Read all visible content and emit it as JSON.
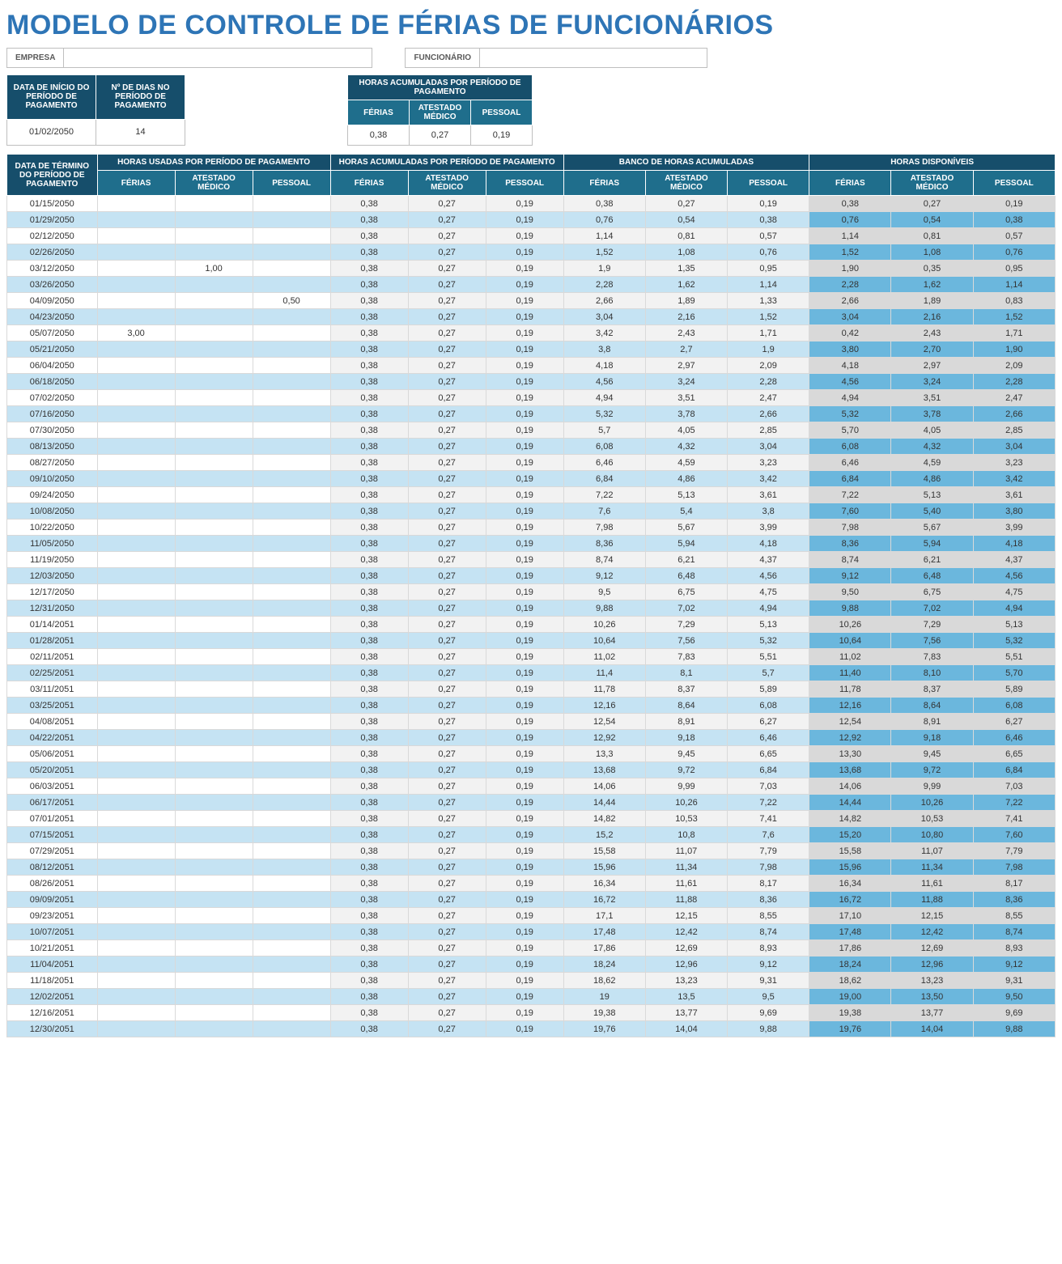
{
  "title": "MODELO DE CONTROLE DE FÉRIAS DE FUNCIONÁRIOS",
  "header": {
    "empresa_label": "EMPRESA",
    "empresa_value": "",
    "funcionario_label": "FUNCIONÁRIO",
    "funcionario_value": ""
  },
  "meta": {
    "start_label": "DATA DE INÍCIO DO PERÍODO DE PAGAMENTO",
    "days_label": "Nº DE DIAS NO PERÍODO DE PAGAMENTO",
    "start_value": "01/02/2050",
    "days_value": "14",
    "accrued_group": "HORAS ACUMULADAS POR PERÍODO DE PAGAMENTO",
    "ferias_label": "FÉRIAS",
    "atestado_label": "ATESTADO MÉDICO",
    "pessoal_label": "PESSOAL",
    "acc_ferias": "0,38",
    "acc_atestado": "0,27",
    "acc_pessoal": "0,19"
  },
  "columns": {
    "date_label": "DATA DE TÉRMINO DO PERÍODO DE PAGAMENTO",
    "used_group": "HORAS USADAS POR PERÍODO DE PAGAMENTO",
    "accr_group": "HORAS ACUMULADAS POR PERÍODO DE PAGAMENTO",
    "bank_group": "BANCO DE HORAS ACUMULADAS",
    "avail_group": "HORAS DISPONÍVEIS",
    "ferias": "FÉRIAS",
    "atestado": "ATESTADO MÉDICO",
    "pessoal": "PESSOAL"
  },
  "rows": [
    {
      "date": "01/15/2050",
      "uf": "",
      "ua": "",
      "up": "",
      "af": "0,38",
      "aa": "0,27",
      "ap": "0,19",
      "bf": "0,38",
      "ba": "0,27",
      "bp": "0,19",
      "vf": "0,38",
      "va": "0,27",
      "vp": "0,19"
    },
    {
      "date": "01/29/2050",
      "uf": "",
      "ua": "",
      "up": "",
      "af": "0,38",
      "aa": "0,27",
      "ap": "0,19",
      "bf": "0,76",
      "ba": "0,54",
      "bp": "0,38",
      "vf": "0,76",
      "va": "0,54",
      "vp": "0,38"
    },
    {
      "date": "02/12/2050",
      "uf": "",
      "ua": "",
      "up": "",
      "af": "0,38",
      "aa": "0,27",
      "ap": "0,19",
      "bf": "1,14",
      "ba": "0,81",
      "bp": "0,57",
      "vf": "1,14",
      "va": "0,81",
      "vp": "0,57"
    },
    {
      "date": "02/26/2050",
      "uf": "",
      "ua": "",
      "up": "",
      "af": "0,38",
      "aa": "0,27",
      "ap": "0,19",
      "bf": "1,52",
      "ba": "1,08",
      "bp": "0,76",
      "vf": "1,52",
      "va": "1,08",
      "vp": "0,76"
    },
    {
      "date": "03/12/2050",
      "uf": "",
      "ua": "1,00",
      "up": "",
      "af": "0,38",
      "aa": "0,27",
      "ap": "0,19",
      "bf": "1,9",
      "ba": "1,35",
      "bp": "0,95",
      "vf": "1,90",
      "va": "0,35",
      "vp": "0,95"
    },
    {
      "date": "03/26/2050",
      "uf": "",
      "ua": "",
      "up": "",
      "af": "0,38",
      "aa": "0,27",
      "ap": "0,19",
      "bf": "2,28",
      "ba": "1,62",
      "bp": "1,14",
      "vf": "2,28",
      "va": "1,62",
      "vp": "1,14"
    },
    {
      "date": "04/09/2050",
      "uf": "",
      "ua": "",
      "up": "0,50",
      "af": "0,38",
      "aa": "0,27",
      "ap": "0,19",
      "bf": "2,66",
      "ba": "1,89",
      "bp": "1,33",
      "vf": "2,66",
      "va": "1,89",
      "vp": "0,83"
    },
    {
      "date": "04/23/2050",
      "uf": "",
      "ua": "",
      "up": "",
      "af": "0,38",
      "aa": "0,27",
      "ap": "0,19",
      "bf": "3,04",
      "ba": "2,16",
      "bp": "1,52",
      "vf": "3,04",
      "va": "2,16",
      "vp": "1,52"
    },
    {
      "date": "05/07/2050",
      "uf": "3,00",
      "ua": "",
      "up": "",
      "af": "0,38",
      "aa": "0,27",
      "ap": "0,19",
      "bf": "3,42",
      "ba": "2,43",
      "bp": "1,71",
      "vf": "0,42",
      "va": "2,43",
      "vp": "1,71"
    },
    {
      "date": "05/21/2050",
      "uf": "",
      "ua": "",
      "up": "",
      "af": "0,38",
      "aa": "0,27",
      "ap": "0,19",
      "bf": "3,8",
      "ba": "2,7",
      "bp": "1,9",
      "vf": "3,80",
      "va": "2,70",
      "vp": "1,90"
    },
    {
      "date": "06/04/2050",
      "uf": "",
      "ua": "",
      "up": "",
      "af": "0,38",
      "aa": "0,27",
      "ap": "0,19",
      "bf": "4,18",
      "ba": "2,97",
      "bp": "2,09",
      "vf": "4,18",
      "va": "2,97",
      "vp": "2,09"
    },
    {
      "date": "06/18/2050",
      "uf": "",
      "ua": "",
      "up": "",
      "af": "0,38",
      "aa": "0,27",
      "ap": "0,19",
      "bf": "4,56",
      "ba": "3,24",
      "bp": "2,28",
      "vf": "4,56",
      "va": "3,24",
      "vp": "2,28"
    },
    {
      "date": "07/02/2050",
      "uf": "",
      "ua": "",
      "up": "",
      "af": "0,38",
      "aa": "0,27",
      "ap": "0,19",
      "bf": "4,94",
      "ba": "3,51",
      "bp": "2,47",
      "vf": "4,94",
      "va": "3,51",
      "vp": "2,47"
    },
    {
      "date": "07/16/2050",
      "uf": "",
      "ua": "",
      "up": "",
      "af": "0,38",
      "aa": "0,27",
      "ap": "0,19",
      "bf": "5,32",
      "ba": "3,78",
      "bp": "2,66",
      "vf": "5,32",
      "va": "3,78",
      "vp": "2,66"
    },
    {
      "date": "07/30/2050",
      "uf": "",
      "ua": "",
      "up": "",
      "af": "0,38",
      "aa": "0,27",
      "ap": "0,19",
      "bf": "5,7",
      "ba": "4,05",
      "bp": "2,85",
      "vf": "5,70",
      "va": "4,05",
      "vp": "2,85"
    },
    {
      "date": "08/13/2050",
      "uf": "",
      "ua": "",
      "up": "",
      "af": "0,38",
      "aa": "0,27",
      "ap": "0,19",
      "bf": "6,08",
      "ba": "4,32",
      "bp": "3,04",
      "vf": "6,08",
      "va": "4,32",
      "vp": "3,04"
    },
    {
      "date": "08/27/2050",
      "uf": "",
      "ua": "",
      "up": "",
      "af": "0,38",
      "aa": "0,27",
      "ap": "0,19",
      "bf": "6,46",
      "ba": "4,59",
      "bp": "3,23",
      "vf": "6,46",
      "va": "4,59",
      "vp": "3,23"
    },
    {
      "date": "09/10/2050",
      "uf": "",
      "ua": "",
      "up": "",
      "af": "0,38",
      "aa": "0,27",
      "ap": "0,19",
      "bf": "6,84",
      "ba": "4,86",
      "bp": "3,42",
      "vf": "6,84",
      "va": "4,86",
      "vp": "3,42"
    },
    {
      "date": "09/24/2050",
      "uf": "",
      "ua": "",
      "up": "",
      "af": "0,38",
      "aa": "0,27",
      "ap": "0,19",
      "bf": "7,22",
      "ba": "5,13",
      "bp": "3,61",
      "vf": "7,22",
      "va": "5,13",
      "vp": "3,61"
    },
    {
      "date": "10/08/2050",
      "uf": "",
      "ua": "",
      "up": "",
      "af": "0,38",
      "aa": "0,27",
      "ap": "0,19",
      "bf": "7,6",
      "ba": "5,4",
      "bp": "3,8",
      "vf": "7,60",
      "va": "5,40",
      "vp": "3,80"
    },
    {
      "date": "10/22/2050",
      "uf": "",
      "ua": "",
      "up": "",
      "af": "0,38",
      "aa": "0,27",
      "ap": "0,19",
      "bf": "7,98",
      "ba": "5,67",
      "bp": "3,99",
      "vf": "7,98",
      "va": "5,67",
      "vp": "3,99"
    },
    {
      "date": "11/05/2050",
      "uf": "",
      "ua": "",
      "up": "",
      "af": "0,38",
      "aa": "0,27",
      "ap": "0,19",
      "bf": "8,36",
      "ba": "5,94",
      "bp": "4,18",
      "vf": "8,36",
      "va": "5,94",
      "vp": "4,18"
    },
    {
      "date": "11/19/2050",
      "uf": "",
      "ua": "",
      "up": "",
      "af": "0,38",
      "aa": "0,27",
      "ap": "0,19",
      "bf": "8,74",
      "ba": "6,21",
      "bp": "4,37",
      "vf": "8,74",
      "va": "6,21",
      "vp": "4,37"
    },
    {
      "date": "12/03/2050",
      "uf": "",
      "ua": "",
      "up": "",
      "af": "0,38",
      "aa": "0,27",
      "ap": "0,19",
      "bf": "9,12",
      "ba": "6,48",
      "bp": "4,56",
      "vf": "9,12",
      "va": "6,48",
      "vp": "4,56"
    },
    {
      "date": "12/17/2050",
      "uf": "",
      "ua": "",
      "up": "",
      "af": "0,38",
      "aa": "0,27",
      "ap": "0,19",
      "bf": "9,5",
      "ba": "6,75",
      "bp": "4,75",
      "vf": "9,50",
      "va": "6,75",
      "vp": "4,75"
    },
    {
      "date": "12/31/2050",
      "uf": "",
      "ua": "",
      "up": "",
      "af": "0,38",
      "aa": "0,27",
      "ap": "0,19",
      "bf": "9,88",
      "ba": "7,02",
      "bp": "4,94",
      "vf": "9,88",
      "va": "7,02",
      "vp": "4,94"
    },
    {
      "date": "01/14/2051",
      "uf": "",
      "ua": "",
      "up": "",
      "af": "0,38",
      "aa": "0,27",
      "ap": "0,19",
      "bf": "10,26",
      "ba": "7,29",
      "bp": "5,13",
      "vf": "10,26",
      "va": "7,29",
      "vp": "5,13"
    },
    {
      "date": "01/28/2051",
      "uf": "",
      "ua": "",
      "up": "",
      "af": "0,38",
      "aa": "0,27",
      "ap": "0,19",
      "bf": "10,64",
      "ba": "7,56",
      "bp": "5,32",
      "vf": "10,64",
      "va": "7,56",
      "vp": "5,32"
    },
    {
      "date": "02/11/2051",
      "uf": "",
      "ua": "",
      "up": "",
      "af": "0,38",
      "aa": "0,27",
      "ap": "0,19",
      "bf": "11,02",
      "ba": "7,83",
      "bp": "5,51",
      "vf": "11,02",
      "va": "7,83",
      "vp": "5,51"
    },
    {
      "date": "02/25/2051",
      "uf": "",
      "ua": "",
      "up": "",
      "af": "0,38",
      "aa": "0,27",
      "ap": "0,19",
      "bf": "11,4",
      "ba": "8,1",
      "bp": "5,7",
      "vf": "11,40",
      "va": "8,10",
      "vp": "5,70"
    },
    {
      "date": "03/11/2051",
      "uf": "",
      "ua": "",
      "up": "",
      "af": "0,38",
      "aa": "0,27",
      "ap": "0,19",
      "bf": "11,78",
      "ba": "8,37",
      "bp": "5,89",
      "vf": "11,78",
      "va": "8,37",
      "vp": "5,89"
    },
    {
      "date": "03/25/2051",
      "uf": "",
      "ua": "",
      "up": "",
      "af": "0,38",
      "aa": "0,27",
      "ap": "0,19",
      "bf": "12,16",
      "ba": "8,64",
      "bp": "6,08",
      "vf": "12,16",
      "va": "8,64",
      "vp": "6,08"
    },
    {
      "date": "04/08/2051",
      "uf": "",
      "ua": "",
      "up": "",
      "af": "0,38",
      "aa": "0,27",
      "ap": "0,19",
      "bf": "12,54",
      "ba": "8,91",
      "bp": "6,27",
      "vf": "12,54",
      "va": "8,91",
      "vp": "6,27"
    },
    {
      "date": "04/22/2051",
      "uf": "",
      "ua": "",
      "up": "",
      "af": "0,38",
      "aa": "0,27",
      "ap": "0,19",
      "bf": "12,92",
      "ba": "9,18",
      "bp": "6,46",
      "vf": "12,92",
      "va": "9,18",
      "vp": "6,46"
    },
    {
      "date": "05/06/2051",
      "uf": "",
      "ua": "",
      "up": "",
      "af": "0,38",
      "aa": "0,27",
      "ap": "0,19",
      "bf": "13,3",
      "ba": "9,45",
      "bp": "6,65",
      "vf": "13,30",
      "va": "9,45",
      "vp": "6,65"
    },
    {
      "date": "05/20/2051",
      "uf": "",
      "ua": "",
      "up": "",
      "af": "0,38",
      "aa": "0,27",
      "ap": "0,19",
      "bf": "13,68",
      "ba": "9,72",
      "bp": "6,84",
      "vf": "13,68",
      "va": "9,72",
      "vp": "6,84"
    },
    {
      "date": "06/03/2051",
      "uf": "",
      "ua": "",
      "up": "",
      "af": "0,38",
      "aa": "0,27",
      "ap": "0,19",
      "bf": "14,06",
      "ba": "9,99",
      "bp": "7,03",
      "vf": "14,06",
      "va": "9,99",
      "vp": "7,03"
    },
    {
      "date": "06/17/2051",
      "uf": "",
      "ua": "",
      "up": "",
      "af": "0,38",
      "aa": "0,27",
      "ap": "0,19",
      "bf": "14,44",
      "ba": "10,26",
      "bp": "7,22",
      "vf": "14,44",
      "va": "10,26",
      "vp": "7,22"
    },
    {
      "date": "07/01/2051",
      "uf": "",
      "ua": "",
      "up": "",
      "af": "0,38",
      "aa": "0,27",
      "ap": "0,19",
      "bf": "14,82",
      "ba": "10,53",
      "bp": "7,41",
      "vf": "14,82",
      "va": "10,53",
      "vp": "7,41"
    },
    {
      "date": "07/15/2051",
      "uf": "",
      "ua": "",
      "up": "",
      "af": "0,38",
      "aa": "0,27",
      "ap": "0,19",
      "bf": "15,2",
      "ba": "10,8",
      "bp": "7,6",
      "vf": "15,20",
      "va": "10,80",
      "vp": "7,60"
    },
    {
      "date": "07/29/2051",
      "uf": "",
      "ua": "",
      "up": "",
      "af": "0,38",
      "aa": "0,27",
      "ap": "0,19",
      "bf": "15,58",
      "ba": "11,07",
      "bp": "7,79",
      "vf": "15,58",
      "va": "11,07",
      "vp": "7,79"
    },
    {
      "date": "08/12/2051",
      "uf": "",
      "ua": "",
      "up": "",
      "af": "0,38",
      "aa": "0,27",
      "ap": "0,19",
      "bf": "15,96",
      "ba": "11,34",
      "bp": "7,98",
      "vf": "15,96",
      "va": "11,34",
      "vp": "7,98"
    },
    {
      "date": "08/26/2051",
      "uf": "",
      "ua": "",
      "up": "",
      "af": "0,38",
      "aa": "0,27",
      "ap": "0,19",
      "bf": "16,34",
      "ba": "11,61",
      "bp": "8,17",
      "vf": "16,34",
      "va": "11,61",
      "vp": "8,17"
    },
    {
      "date": "09/09/2051",
      "uf": "",
      "ua": "",
      "up": "",
      "af": "0,38",
      "aa": "0,27",
      "ap": "0,19",
      "bf": "16,72",
      "ba": "11,88",
      "bp": "8,36",
      "vf": "16,72",
      "va": "11,88",
      "vp": "8,36"
    },
    {
      "date": "09/23/2051",
      "uf": "",
      "ua": "",
      "up": "",
      "af": "0,38",
      "aa": "0,27",
      "ap": "0,19",
      "bf": "17,1",
      "ba": "12,15",
      "bp": "8,55",
      "vf": "17,10",
      "va": "12,15",
      "vp": "8,55"
    },
    {
      "date": "10/07/2051",
      "uf": "",
      "ua": "",
      "up": "",
      "af": "0,38",
      "aa": "0,27",
      "ap": "0,19",
      "bf": "17,48",
      "ba": "12,42",
      "bp": "8,74",
      "vf": "17,48",
      "va": "12,42",
      "vp": "8,74"
    },
    {
      "date": "10/21/2051",
      "uf": "",
      "ua": "",
      "up": "",
      "af": "0,38",
      "aa": "0,27",
      "ap": "0,19",
      "bf": "17,86",
      "ba": "12,69",
      "bp": "8,93",
      "vf": "17,86",
      "va": "12,69",
      "vp": "8,93"
    },
    {
      "date": "11/04/2051",
      "uf": "",
      "ua": "",
      "up": "",
      "af": "0,38",
      "aa": "0,27",
      "ap": "0,19",
      "bf": "18,24",
      "ba": "12,96",
      "bp": "9,12",
      "vf": "18,24",
      "va": "12,96",
      "vp": "9,12"
    },
    {
      "date": "11/18/2051",
      "uf": "",
      "ua": "",
      "up": "",
      "af": "0,38",
      "aa": "0,27",
      "ap": "0,19",
      "bf": "18,62",
      "ba": "13,23",
      "bp": "9,31",
      "vf": "18,62",
      "va": "13,23",
      "vp": "9,31"
    },
    {
      "date": "12/02/2051",
      "uf": "",
      "ua": "",
      "up": "",
      "af": "0,38",
      "aa": "0,27",
      "ap": "0,19",
      "bf": "19",
      "ba": "13,5",
      "bp": "9,5",
      "vf": "19,00",
      "va": "13,50",
      "vp": "9,50"
    },
    {
      "date": "12/16/2051",
      "uf": "",
      "ua": "",
      "up": "",
      "af": "0,38",
      "aa": "0,27",
      "ap": "0,19",
      "bf": "19,38",
      "ba": "13,77",
      "bp": "9,69",
      "vf": "19,38",
      "va": "13,77",
      "vp": "9,69"
    },
    {
      "date": "12/30/2051",
      "uf": "",
      "ua": "",
      "up": "",
      "af": "0,38",
      "aa": "0,27",
      "ap": "0,19",
      "bf": "19,76",
      "ba": "14,04",
      "bp": "9,88",
      "vf": "19,76",
      "va": "14,04",
      "vp": "9,88"
    }
  ],
  "style": {
    "title_color": "#2e75b6",
    "header_bg": "#164e6b",
    "subheader_bg": "#1f6e8c",
    "even_row_bg": "#c5e3f3",
    "odd_bank_bg": "#f2f2f2",
    "avail_even_bg": "#6bb7dd",
    "avail_odd_bg": "#d9d9d9"
  }
}
